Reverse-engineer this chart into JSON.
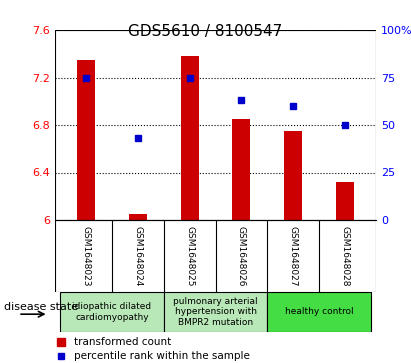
{
  "title": "GDS5610 / 8100547",
  "samples": [
    "GSM1648023",
    "GSM1648024",
    "GSM1648025",
    "GSM1648026",
    "GSM1648027",
    "GSM1648028"
  ],
  "bar_values": [
    7.35,
    6.05,
    7.38,
    6.85,
    6.75,
    6.32
  ],
  "percentile_values": [
    75,
    43,
    75,
    63,
    60,
    50
  ],
  "ylim_left": [
    6.0,
    7.6
  ],
  "ylim_right": [
    0,
    100
  ],
  "yticks_left": [
    6.0,
    6.4,
    6.8,
    7.2,
    7.6
  ],
  "ytick_labels_left": [
    "6",
    "6.4",
    "6.8",
    "7.2",
    "7.6"
  ],
  "yticks_right": [
    0,
    25,
    50,
    75,
    100
  ],
  "ytick_labels_right": [
    "0",
    "25",
    "50",
    "75",
    "100%"
  ],
  "bar_color": "#cc0000",
  "dot_color": "#0000cc",
  "bar_bottom": 6.0,
  "group_defs": [
    {
      "indices": [
        0,
        1
      ],
      "label": "idiopathic dilated\ncardiomyopathy",
      "color": "#b8e8b8"
    },
    {
      "indices": [
        2,
        3
      ],
      "label": "pulmonary arterial\nhypertension with\nBMPR2 mutation",
      "color": "#b8e8b8"
    },
    {
      "indices": [
        4,
        5
      ],
      "label": "healthy control",
      "color": "#44dd44"
    }
  ],
  "legend_bar_label": "transformed count",
  "legend_dot_label": "percentile rank within the sample",
  "disease_state_label": "disease state",
  "sample_area_color": "#cccccc",
  "title_fontsize": 11,
  "tick_fontsize": 8,
  "sample_fontsize": 6.5,
  "disease_fontsize": 6.5,
  "legend_fontsize": 7.5,
  "bar_width": 0.35
}
